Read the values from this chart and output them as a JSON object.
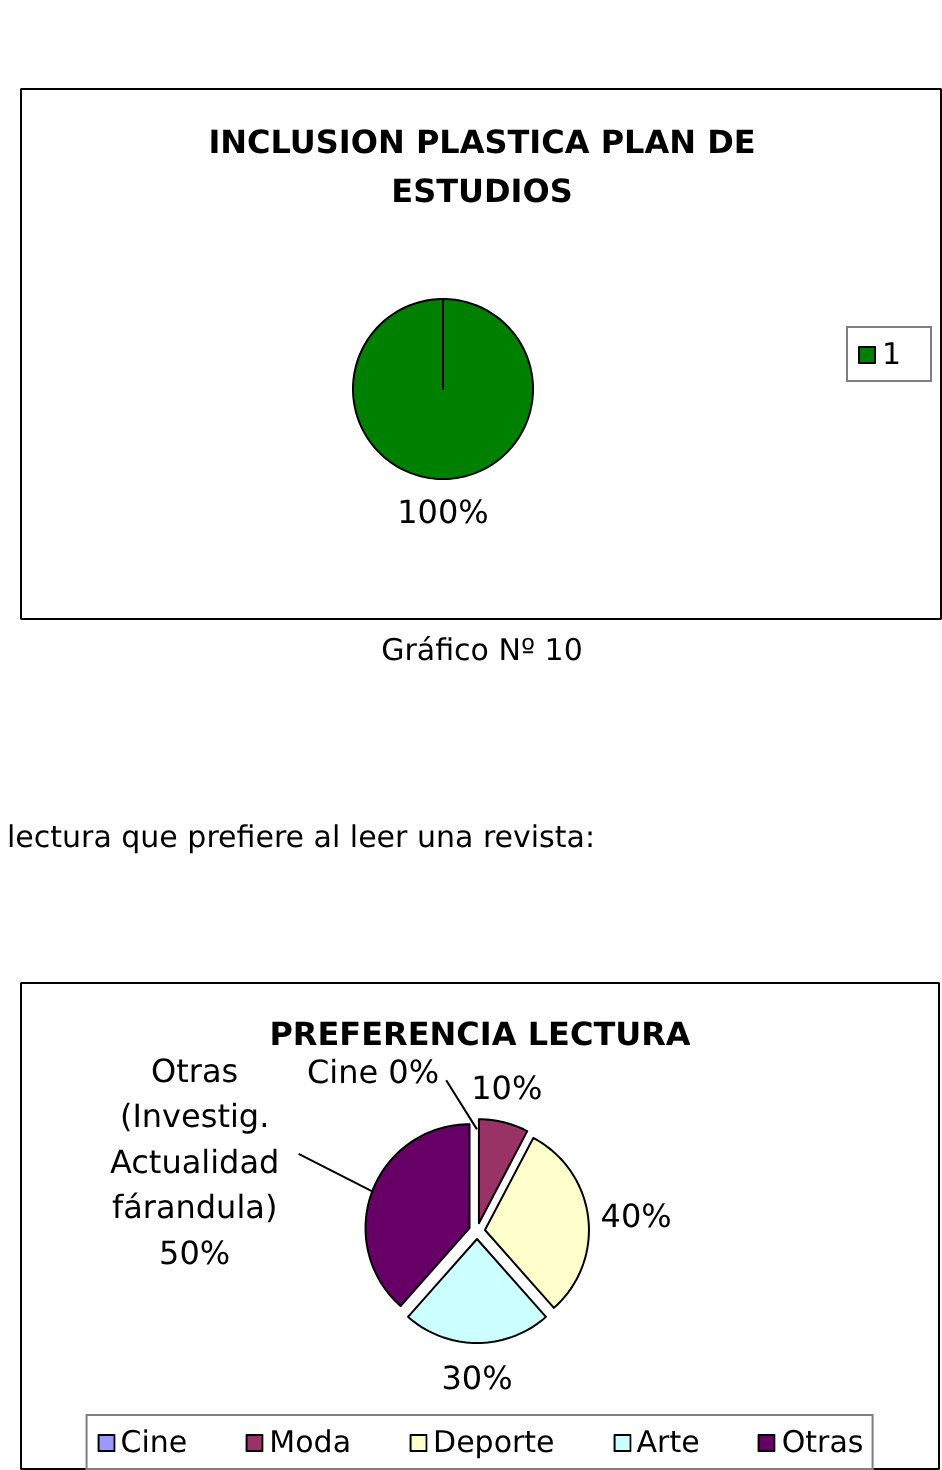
{
  "chart_data": [
    {
      "type": "pie",
      "title": "INCLUSION PLASTICA PLAN DE ESTUDIOS",
      "categories": [
        "1"
      ],
      "values": [
        100
      ],
      "colors": [
        "#008000"
      ],
      "value_labels": [
        "100%"
      ],
      "legend": "right",
      "annotations": [
        "Gráfico Nº 10"
      ]
    },
    {
      "type": "pie",
      "title": "PREFERENCIA LECTURA",
      "categories": [
        "Cine",
        "Moda",
        "Deporte",
        "Arte",
        "Otras"
      ],
      "values": [
        0,
        10,
        40,
        30,
        50
      ],
      "colors": [
        "#9999ff",
        "#993366",
        "#ffffcc",
        "#ccffff",
        "#660066"
      ],
      "value_labels": [
        "Cine 0%",
        "10%",
        "40%",
        "30%",
        "Otras (Investig. Actualidad fárandula) 50%"
      ],
      "legend": "bottom",
      "annotations": [
        "lectura que prefiere al leer una revista:"
      ]
    }
  ]
}
